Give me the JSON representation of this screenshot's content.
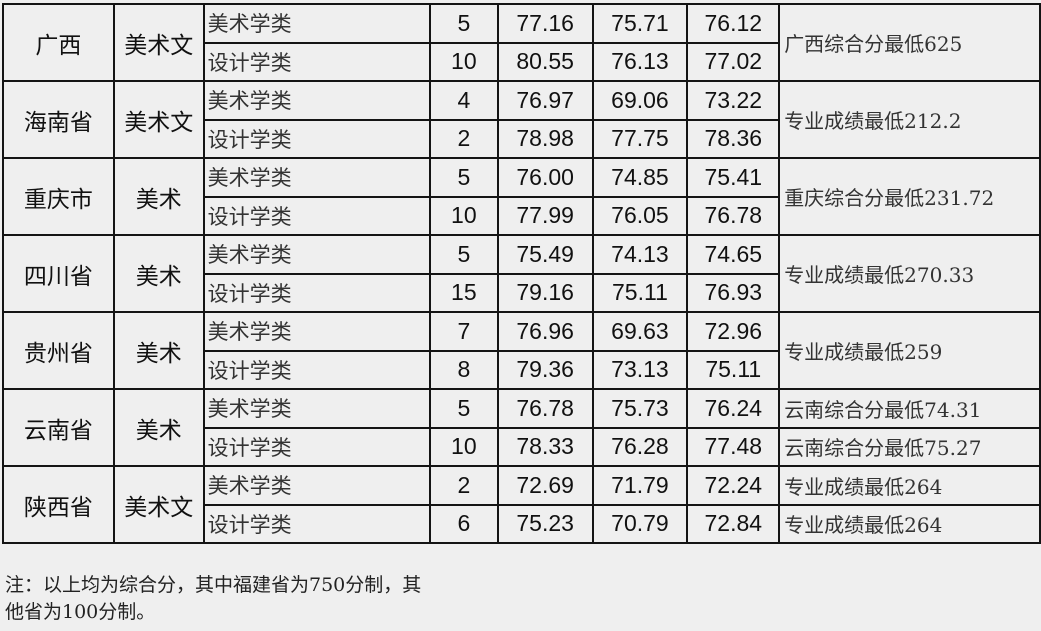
{
  "rows": [
    {
      "province": "广西",
      "type": "美术文",
      "majors": [
        {
          "name": "美术学类",
          "count": "5",
          "max": "77.16",
          "min": "75.71",
          "avg": "76.12"
        },
        {
          "name": "设计学类",
          "count": "10",
          "max": "80.55",
          "min": "76.13",
          "avg": "77.02"
        }
      ],
      "notes": [
        "广西综合分最低625"
      ]
    },
    {
      "province": "海南省",
      "type": "美术文",
      "majors": [
        {
          "name": "美术学类",
          "count": "4",
          "max": "76.97",
          "min": "69.06",
          "avg": "73.22"
        },
        {
          "name": "设计学类",
          "count": "2",
          "max": "78.98",
          "min": "77.75",
          "avg": "78.36"
        }
      ],
      "notes": [
        "专业成绩最低212.2"
      ]
    },
    {
      "province": "重庆市",
      "type": "美术",
      "majors": [
        {
          "name": "美术学类",
          "count": "5",
          "max": "76.00",
          "min": "74.85",
          "avg": "75.41"
        },
        {
          "name": "设计学类",
          "count": "10",
          "max": "77.99",
          "min": "76.05",
          "avg": "76.78"
        }
      ],
      "notes": [
        "重庆综合分最低231.72"
      ]
    },
    {
      "province": "四川省",
      "type": "美术",
      "majors": [
        {
          "name": "美术学类",
          "count": "5",
          "max": "75.49",
          "min": "74.13",
          "avg": "74.65"
        },
        {
          "name": "设计学类",
          "count": "15",
          "max": "79.16",
          "min": "75.11",
          "avg": "76.93"
        }
      ],
      "notes": [
        "专业成绩最低270.33"
      ]
    },
    {
      "province": "贵州省",
      "type": "美术",
      "majors": [
        {
          "name": "美术学类",
          "count": "7",
          "max": "76.96",
          "min": "69.63",
          "avg": "72.96"
        },
        {
          "name": "设计学类",
          "count": "8",
          "max": "79.36",
          "min": "73.13",
          "avg": "75.11"
        }
      ],
      "notes": [
        "专业成绩最低259"
      ]
    },
    {
      "province": "云南省",
      "type": "美术",
      "majors": [
        {
          "name": "美术学类",
          "count": "5",
          "max": "76.78",
          "min": "75.73",
          "avg": "76.24"
        },
        {
          "name": "设计学类",
          "count": "10",
          "max": "78.33",
          "min": "76.28",
          "avg": "77.48"
        }
      ],
      "notes": [
        "云南综合分最低74.31",
        "云南综合分最低75.27"
      ]
    },
    {
      "province": "陕西省",
      "type": "美术文",
      "majors": [
        {
          "name": "美术学类",
          "count": "2",
          "max": "72.69",
          "min": "71.79",
          "avg": "72.24"
        },
        {
          "name": "设计学类",
          "count": "6",
          "max": "75.23",
          "min": "70.79",
          "avg": "72.84"
        }
      ],
      "notes": [
        "专业成绩最低264",
        "专业成绩最低264"
      ]
    }
  ],
  "footnote": "注：以上均为综合分，其中福建省为750分制，其他省为100分制。"
}
